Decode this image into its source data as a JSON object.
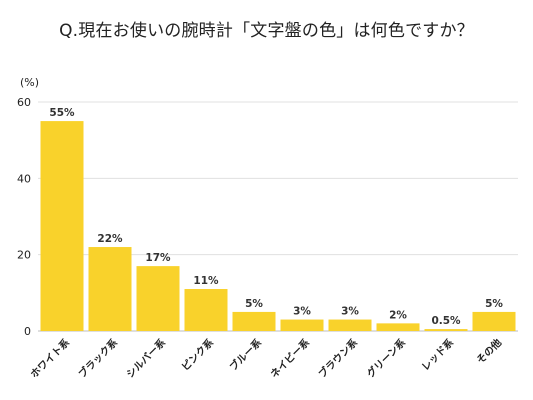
{
  "title": "Q.現在お使いの腕時計「文字盤の色」は何色ですか？",
  "chart_data": {
    "type": "bar",
    "title": "Q.現在お使いの腕時計「文字盤の色」は何色ですか？",
    "ylabel": "(%)",
    "xlabel": "",
    "ylim": [
      0,
      60
    ],
    "yticks": [
      0,
      20,
      40,
      60
    ],
    "grid": true,
    "bar_color": "#F9D22B",
    "categories": [
      "ホワイト系",
      "ブラック系",
      "シルバー系",
      "ピンク系",
      "ブルー系",
      "ネイビー系",
      "ブラウン系",
      "グリーン系",
      "レッド系",
      "その他"
    ],
    "values": [
      55,
      22,
      17,
      11,
      5,
      3,
      3,
      2,
      0.5,
      5
    ],
    "data_labels": [
      "55%",
      "22%",
      "17%",
      "11%",
      "5%",
      "3%",
      "3%",
      "2%",
      "0.5%",
      "5%"
    ]
  }
}
